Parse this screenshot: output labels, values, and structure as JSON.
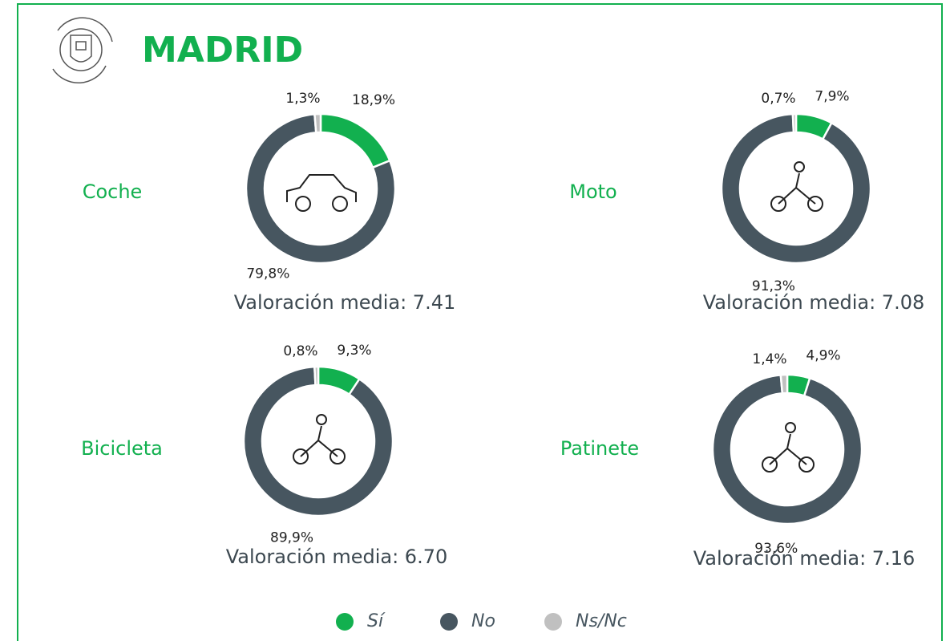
{
  "header": {
    "title": "MADRID"
  },
  "chart_data": [
    {
      "type": "donut",
      "title": "Coche",
      "annotation": "Valoración media: 7.41",
      "categories": [
        "Sí",
        "No",
        "Ns/Nc"
      ],
      "values": [
        18.9,
        79.8,
        1.3
      ],
      "value_labels": [
        "18,9%",
        "79,8%",
        "1,3%"
      ],
      "colors": [
        "#12b04f",
        "#475660",
        "#c0c0c0"
      ]
    },
    {
      "type": "donut",
      "title": "Moto",
      "annotation": "Valoración media: 7.08",
      "categories": [
        "Sí",
        "No",
        "Ns/Nc"
      ],
      "values": [
        7.9,
        91.3,
        0.7
      ],
      "value_labels": [
        "7,9%",
        "91,3%",
        "0,7%"
      ],
      "colors": [
        "#12b04f",
        "#475660",
        "#c0c0c0"
      ]
    },
    {
      "type": "donut",
      "title": "Bicicleta",
      "annotation": "Valoración media: 6.70",
      "categories": [
        "Sí",
        "No",
        "Ns/Nc"
      ],
      "values": [
        9.3,
        89.9,
        0.8
      ],
      "value_labels": [
        "9,3%",
        "89,9%",
        "0,8%"
      ],
      "colors": [
        "#12b04f",
        "#475660",
        "#c0c0c0"
      ]
    },
    {
      "type": "donut",
      "title": "Patinete",
      "annotation": "Valoración media: 7.16",
      "categories": [
        "Sí",
        "No",
        "Ns/Nc"
      ],
      "values": [
        4.9,
        93.6,
        1.4
      ],
      "value_labels": [
        "4,9%",
        "93,6%",
        "1,4%"
      ],
      "colors": [
        "#12b04f",
        "#475660",
        "#c0c0c0"
      ]
    }
  ]
}
